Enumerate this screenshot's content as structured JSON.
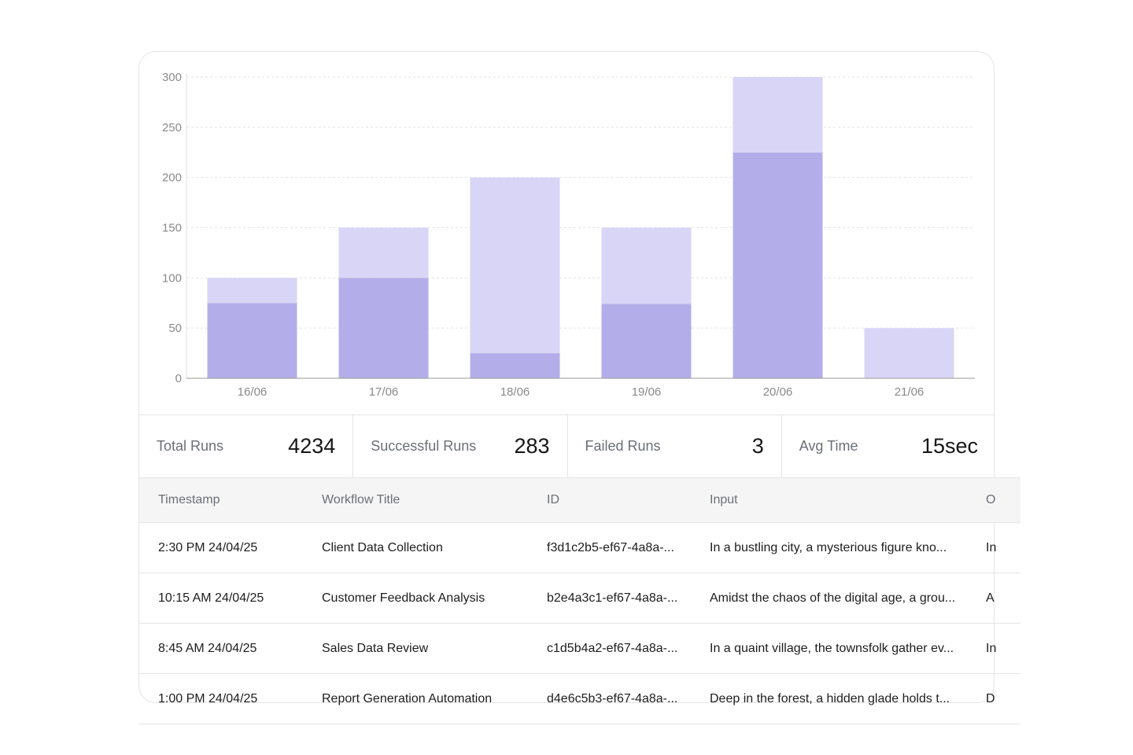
{
  "chart_data": {
    "type": "bar",
    "stacked": true,
    "categories": [
      "16/06",
      "17/06",
      "18/06",
      "19/06",
      "20/06",
      "21/06"
    ],
    "series": [
      {
        "values": [
          75,
          100,
          25,
          74,
          225,
          0
        ],
        "color": "#b3aee9"
      },
      {
        "values": [
          25,
          50,
          175,
          76,
          75,
          50
        ],
        "color": "#d8d5f6"
      }
    ],
    "yticks": [
      0,
      50,
      100,
      150,
      200,
      250,
      300
    ],
    "ylim": [
      0,
      300
    ],
    "grid": true,
    "title": "",
    "xlabel": "",
    "ylabel": ""
  },
  "stats": [
    {
      "label": "Total Runs",
      "value": "4234"
    },
    {
      "label": "Successful Runs",
      "value": "283"
    },
    {
      "label": "Failed Runs",
      "value": "3"
    },
    {
      "label": "Avg Time",
      "value": "15sec"
    }
  ],
  "table": {
    "headers": {
      "timestamp": "Timestamp",
      "title": "Workflow Title",
      "id": "ID",
      "input": "Input",
      "output": "O"
    },
    "rows": [
      {
        "timestamp": "2:30 PM 24/04/25",
        "title": "Client Data Collection",
        "id": "f3d1c2b5-ef67-4a8a-...",
        "input": "In a bustling city, a mysterious figure kno...",
        "output": "In"
      },
      {
        "timestamp": "10:15 AM 24/04/25",
        "title": "Customer Feedback Analysis",
        "id": "b2e4a3c1-ef67-4a8a-...",
        "input": "Amidst the chaos of the digital age, a grou...",
        "output": "A"
      },
      {
        "timestamp": "8:45 AM 24/04/25",
        "title": "Sales Data Review",
        "id": "c1d5b4a2-ef67-4a8a-...",
        "input": "In a quaint village, the townsfolk gather ev...",
        "output": "In"
      },
      {
        "timestamp": "1:00 PM 24/04/25",
        "title": "Report Generation Automation",
        "id": "d4e6c5b3-ef67-4a8a-...",
        "input": "Deep in the forest, a hidden glade holds t...",
        "output": "D"
      }
    ]
  },
  "colors": {
    "bar_dark": "#b3aee9",
    "bar_light": "#d8d5f6",
    "border": "#e5e5e5",
    "header_bg": "#f5f5f5"
  }
}
